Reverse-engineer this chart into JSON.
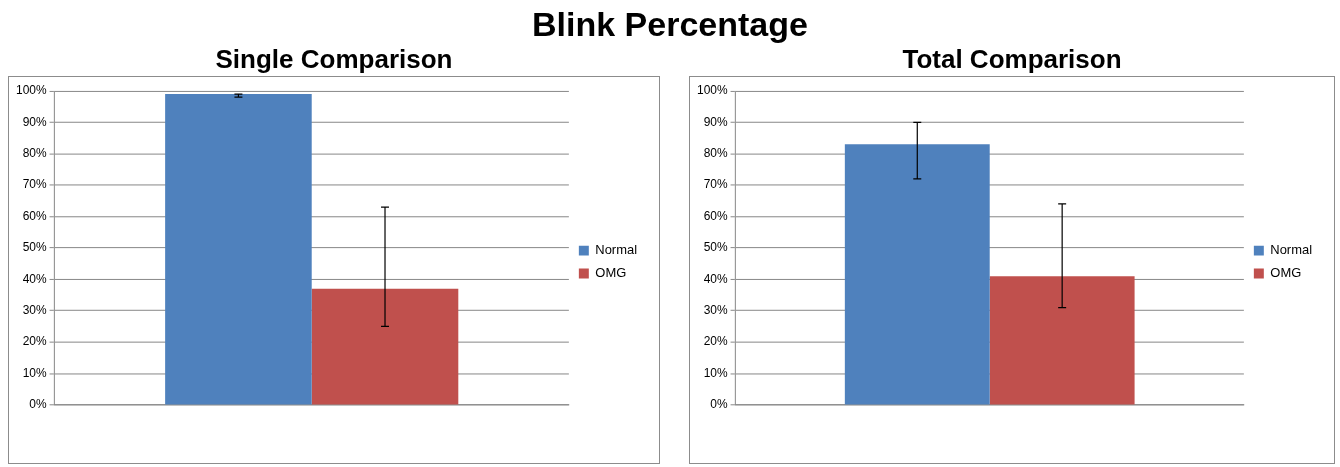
{
  "chart_data": [
    {
      "type": "bar",
      "annotations": [
        "Blink Percentage"
      ],
      "title": "Single Comparison",
      "categories": [
        null
      ],
      "series": [
        {
          "name": "Normal",
          "color": "#4f81bd",
          "values": [
            99
          ],
          "errors": [
            [
              98,
              99
            ]
          ]
        },
        {
          "name": "OMG",
          "color": "#c0504d",
          "values": [
            37
          ],
          "errors": [
            [
              25,
              63
            ]
          ]
        }
      ],
      "ylim": [
        0,
        100
      ],
      "yticks": [
        {
          "value": 0,
          "label": "0%"
        },
        {
          "value": 10,
          "label": "10%"
        },
        {
          "value": 20,
          "label": "20%"
        },
        {
          "value": 30,
          "label": "30%"
        },
        {
          "value": 40,
          "label": "40%"
        },
        {
          "value": 50,
          "label": "50%"
        },
        {
          "value": 60,
          "label": "60%"
        },
        {
          "value": 70,
          "label": "70%"
        },
        {
          "value": 80,
          "label": "80%"
        },
        {
          "value": 90,
          "label": "90%"
        },
        {
          "value": 100,
          "label": "100%"
        }
      ],
      "grid": "y",
      "legend": "right"
    },
    {
      "type": "bar",
      "title": "Total Comparison",
      "categories": [
        null
      ],
      "series": [
        {
          "name": "Normal",
          "color": "#4f81bd",
          "values": [
            83
          ],
          "errors": [
            [
              72,
              90
            ]
          ]
        },
        {
          "name": "OMG",
          "color": "#c0504d",
          "values": [
            41
          ],
          "errors": [
            [
              31,
              64
            ]
          ]
        }
      ],
      "ylim": [
        0,
        100
      ],
      "yticks": [
        {
          "value": 0,
          "label": "0%"
        },
        {
          "value": 10,
          "label": "10%"
        },
        {
          "value": 20,
          "label": "20%"
        },
        {
          "value": 30,
          "label": "30%"
        },
        {
          "value": 40,
          "label": "40%"
        },
        {
          "value": 50,
          "label": "50%"
        },
        {
          "value": 60,
          "label": "60%"
        },
        {
          "value": 70,
          "label": "70%"
        },
        {
          "value": 80,
          "label": "80%"
        },
        {
          "value": 90,
          "label": "90%"
        },
        {
          "value": 100,
          "label": "100%"
        }
      ],
      "grid": "y",
      "legend": "right"
    }
  ]
}
